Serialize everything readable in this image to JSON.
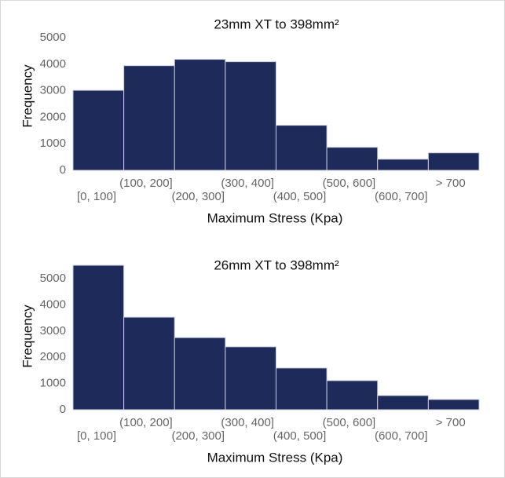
{
  "chart_data": [
    {
      "type": "bar",
      "title": "23mm XT to 398mm²",
      "x_label": "Maximum Stress (Kpa)",
      "y_label": "Frequency",
      "categories": [
        "[0, 100]",
        "(100, 200]",
        "(200, 300]",
        "(300, 400]",
        "(400, 500]",
        "(500, 600]",
        "(600, 700]",
        "> 700"
      ],
      "values": [
        3020,
        3950,
        4190,
        4100,
        1700,
        870,
        420,
        660
      ],
      "color": "#1e2a5a",
      "ylim": [
        0,
        5600
      ],
      "yticks": [
        0,
        1000,
        2000,
        3000,
        4000,
        5000
      ]
    },
    {
      "type": "bar",
      "title": "26mm XT to 398mm²",
      "x_label": "Maximum Stress (Kpa)",
      "y_label": "Frequency",
      "categories": [
        "[0, 100]",
        "(100, 200]",
        "(200, 300]",
        "(300, 400]",
        "(400, 500]",
        "(500, 600]",
        "(600, 700]",
        "> 700"
      ],
      "values": [
        5510,
        3530,
        2750,
        2400,
        1590,
        1110,
        540,
        390
      ],
      "color": "#1e2a5a",
      "ylim": [
        0,
        5600
      ],
      "yticks": [
        0,
        1000,
        2000,
        3000,
        4000,
        5000
      ]
    }
  ]
}
